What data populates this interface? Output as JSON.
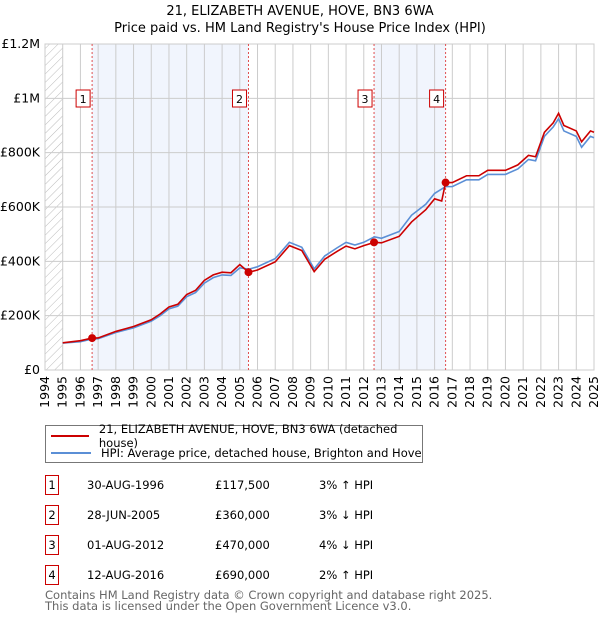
{
  "chart_data": {
    "type": "line",
    "title": "21, ELIZABETH AVENUE, HOVE, BN3 6WA",
    "subtitle": "Price paid vs. HM Land Registry's House Price Index (HPI)",
    "xlim": [
      1994,
      2025
    ],
    "ylim": [
      0,
      1200000
    ],
    "x_ticks": [
      "1994",
      "1995",
      "1996",
      "1997",
      "1998",
      "1999",
      "2000",
      "2001",
      "2002",
      "2003",
      "2004",
      "2005",
      "2006",
      "2007",
      "2008",
      "2009",
      "2010",
      "2011",
      "2012",
      "2013",
      "2014",
      "2015",
      "2016",
      "2017",
      "2018",
      "2019",
      "2020",
      "2021",
      "2022",
      "2023",
      "2024",
      "2025"
    ],
    "y_ticks": [
      {
        "v": 0,
        "label": "£0"
      },
      {
        "v": 200000,
        "label": "£200K"
      },
      {
        "v": 400000,
        "label": "£400K"
      },
      {
        "v": 600000,
        "label": "£600K"
      },
      {
        "v": 800000,
        "label": "£800K"
      },
      {
        "v": 1000000,
        "label": "£1M"
      },
      {
        "v": 1200000,
        "label": "£1.2M"
      }
    ],
    "grid": true,
    "series": [
      {
        "name": "21, ELIZABETH AVENUE, HOVE, BN3 6WA (detached house)",
        "color": "#cc0000",
        "x": [
          1995,
          1996,
          1996.66,
          1997,
          1998,
          1999,
          2000,
          2000.5,
          2001,
          2001.5,
          2002,
          2002.5,
          2003,
          2003.5,
          2004,
          2004.5,
          2005,
          2005.5,
          2006,
          2007,
          2007.8,
          2008.5,
          2009.2,
          2009.8,
          2010.5,
          2011,
          2011.5,
          2012,
          2012.6,
          2013,
          2014,
          2014.7,
          2015.5,
          2016,
          2016.4,
          2016.62,
          2017,
          2017.8,
          2018.5,
          2019,
          2020,
          2020.7,
          2021.3,
          2021.7,
          2022.2,
          2022.7,
          2023,
          2023.3,
          2024,
          2024.3,
          2024.8,
          2025
        ],
        "y": [
          100000,
          108000,
          117500,
          118000,
          142000,
          160000,
          185000,
          206000,
          232000,
          242000,
          278000,
          293000,
          330000,
          350000,
          360000,
          358000,
          388000,
          360000,
          368000,
          398000,
          458000,
          440000,
          362000,
          408000,
          437000,
          456000,
          446000,
          458000,
          470000,
          468000,
          492000,
          545000,
          590000,
          630000,
          622000,
          690000,
          690000,
          715000,
          715000,
          735000,
          735000,
          755000,
          790000,
          785000,
          875000,
          910000,
          945000,
          900000,
          880000,
          840000,
          880000,
          875000
        ]
      },
      {
        "name": "HPI: Average price, detached house, Brighton and Hove",
        "color": "#5b8fd6",
        "x": [
          1995,
          1996,
          1996.66,
          1997,
          1998,
          1999,
          2000,
          2000.5,
          2001,
          2001.5,
          2002,
          2002.5,
          2003,
          2003.5,
          2004,
          2004.5,
          2005,
          2005.5,
          2006,
          2007,
          2007.8,
          2008.5,
          2009.2,
          2009.8,
          2010.5,
          2011,
          2011.5,
          2012,
          2012.6,
          2013,
          2014,
          2014.7,
          2015.5,
          2016,
          2016.62,
          2017,
          2017.8,
          2018.5,
          2019,
          2020,
          2020.7,
          2021.3,
          2021.7,
          2022.2,
          2022.7,
          2023,
          2023.3,
          2024,
          2024.3,
          2024.8,
          2025
        ],
        "y": [
          99000,
          104000,
          114000,
          115000,
          138000,
          155000,
          180000,
          200000,
          225000,
          235000,
          270000,
          285000,
          320000,
          340000,
          350000,
          348000,
          376000,
          371000,
          380000,
          410000,
          470000,
          452000,
          372000,
          420000,
          450000,
          470000,
          460000,
          470000,
          490000,
          485000,
          510000,
          570000,
          610000,
          650000,
          675000,
          675000,
          700000,
          700000,
          720000,
          720000,
          740000,
          775000,
          770000,
          860000,
          895000,
          925000,
          880000,
          860000,
          820000,
          860000,
          855000
        ]
      }
    ],
    "sales": [
      {
        "n": "1",
        "x": 1996.66,
        "date": "30-AUG-1996",
        "price": "£117,500",
        "value": 117500,
        "hpi": "3% ↑ HPI"
      },
      {
        "n": "2",
        "x": 2005.49,
        "date": "28-JUN-2005",
        "price": "£360,000",
        "value": 360000,
        "hpi": "3% ↓ HPI"
      },
      {
        "n": "3",
        "x": 2012.58,
        "date": "01-AUG-2012",
        "price": "£470,000",
        "value": 470000,
        "hpi": "4% ↓ HPI"
      },
      {
        "n": "4",
        "x": 2016.62,
        "date": "12-AUG-2016",
        "price": "£690,000",
        "value": 690000,
        "hpi": "2% ↑ HPI"
      }
    ],
    "shaded_ranges": [
      [
        1996.66,
        2005.49
      ],
      [
        2012.58,
        2016.62
      ]
    ]
  },
  "footer": {
    "line1": "Contains HM Land Registry data © Crown copyright and database right 2025.",
    "line2": "This data is licensed under the Open Government Licence v3.0."
  }
}
